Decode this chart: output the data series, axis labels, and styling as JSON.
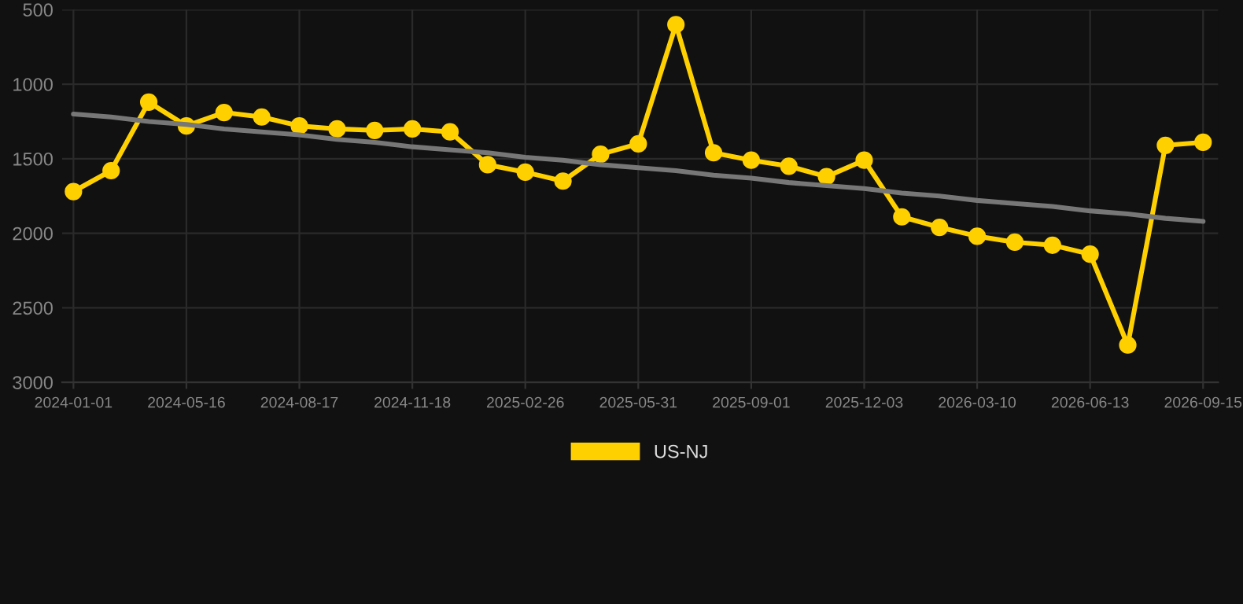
{
  "chart_data": {
    "type": "line",
    "categories": [
      "2024-01-01",
      null,
      null,
      "2024-05-16",
      null,
      null,
      "2024-08-17",
      null,
      null,
      "2024-11-18",
      null,
      null,
      "2025-02-26",
      null,
      null,
      "2025-05-31",
      null,
      null,
      "2025-09-01",
      null,
      null,
      "2025-12-03",
      null,
      null,
      "2026-03-10",
      null,
      null,
      "2026-06-13",
      null,
      null,
      "2026-09-15"
    ],
    "series": [
      {
        "name": "US-NJ",
        "color": "#ffd000",
        "marker": "circle",
        "values": [
          1720,
          1580,
          1120,
          1280,
          1190,
          1220,
          1280,
          1300,
          1310,
          1300,
          1320,
          1540,
          1590,
          1650,
          1470,
          1400,
          600,
          1460,
          1510,
          1550,
          1620,
          1510,
          1890,
          1960,
          2020,
          2060,
          2080,
          2140,
          2750,
          1410,
          1390
        ]
      },
      {
        "type": "line",
        "color": "#777777",
        "marker": "none",
        "values": [
          1200,
          1220,
          1250,
          1270,
          1300,
          1320,
          1340,
          1370,
          1390,
          1420,
          1440,
          1460,
          1490,
          1510,
          1540,
          1560,
          1580,
          1610,
          1630,
          1660,
          1680,
          1700,
          1730,
          1750,
          1780,
          1800,
          1820,
          1850,
          1870,
          1900,
          1920
        ]
      }
    ],
    "ylim": [
      3000,
      500
    ],
    "yticks": [
      500,
      1000,
      1500,
      2000,
      2500,
      3000
    ],
    "grid": true,
    "legend": "bottom",
    "line_style": "solid"
  }
}
